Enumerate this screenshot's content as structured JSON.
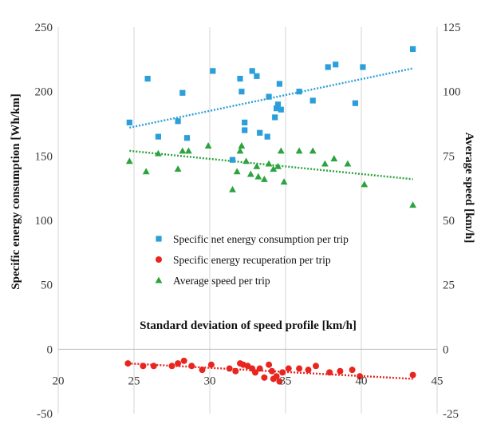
{
  "chart_data": {
    "type": "scatter",
    "title": "",
    "xlabel": "Standard deviation of speed profile [km/h]",
    "ylabel_left": "Specific energy consumption [Wh/km]",
    "ylabel_right": "Average speed [km/h]",
    "xlim": [
      20,
      45
    ],
    "ylim_left": [
      -50,
      250
    ],
    "ylim_right": [
      -25,
      125
    ],
    "x_ticks": [
      "20",
      "25",
      "30",
      "35",
      "40",
      "45"
    ],
    "y_left_ticks": [
      "-50",
      "0",
      "50",
      "100",
      "150",
      "200",
      "250"
    ],
    "y_right_ticks": [
      "-25",
      "0",
      "25",
      "50",
      "75",
      "100",
      "125"
    ],
    "grid": "vertical",
    "legend_position": "center",
    "series": [
      {
        "name": "Specific net energy consumption per trip",
        "axis": "left",
        "marker": "square",
        "color": "#2b9fd9",
        "points": [
          [
            24.7,
            176
          ],
          [
            25.9,
            210
          ],
          [
            26.6,
            165
          ],
          [
            27.9,
            177
          ],
          [
            28.2,
            199
          ],
          [
            28.5,
            164
          ],
          [
            30.2,
            216
          ],
          [
            31.5,
            147
          ],
          [
            32.0,
            210
          ],
          [
            32.1,
            200
          ],
          [
            32.3,
            176
          ],
          [
            32.3,
            170
          ],
          [
            32.8,
            216
          ],
          [
            33.1,
            212
          ],
          [
            33.3,
            168
          ],
          [
            33.8,
            165
          ],
          [
            33.9,
            196
          ],
          [
            34.3,
            180
          ],
          [
            34.4,
            187
          ],
          [
            34.5,
            190
          ],
          [
            34.6,
            206
          ],
          [
            34.7,
            186
          ],
          [
            35.9,
            200
          ],
          [
            36.8,
            193
          ],
          [
            37.8,
            219
          ],
          [
            38.3,
            221
          ],
          [
            39.6,
            191
          ],
          [
            40.1,
            219
          ],
          [
            43.4,
            233
          ]
        ],
        "trend": [
          [
            24.7,
            172
          ],
          [
            43.4,
            218
          ]
        ]
      },
      {
        "name": "Specific energy recuperation per trip",
        "axis": "left",
        "marker": "circle",
        "color": "#e8251f",
        "points": [
          [
            24.6,
            -11
          ],
          [
            25.6,
            -13
          ],
          [
            26.3,
            -13
          ],
          [
            27.5,
            -13
          ],
          [
            27.9,
            -11
          ],
          [
            28.3,
            -9
          ],
          [
            28.8,
            -13
          ],
          [
            29.5,
            -16
          ],
          [
            30.1,
            -12
          ],
          [
            31.3,
            -15
          ],
          [
            31.7,
            -17
          ],
          [
            32.0,
            -11
          ],
          [
            32.2,
            -12
          ],
          [
            32.5,
            -13
          ],
          [
            32.8,
            -15
          ],
          [
            33.0,
            -18
          ],
          [
            33.3,
            -15
          ],
          [
            33.6,
            -22
          ],
          [
            33.9,
            -12
          ],
          [
            34.1,
            -17
          ],
          [
            34.2,
            -23
          ],
          [
            34.4,
            -21
          ],
          [
            34.6,
            -25
          ],
          [
            34.8,
            -18
          ],
          [
            35.2,
            -15
          ],
          [
            35.9,
            -15
          ],
          [
            36.5,
            -16
          ],
          [
            37.0,
            -13
          ],
          [
            37.9,
            -18
          ],
          [
            38.6,
            -17
          ],
          [
            39.4,
            -16
          ],
          [
            39.9,
            -21
          ],
          [
            43.4,
            -20
          ]
        ],
        "trend": [
          [
            24.6,
            -11
          ],
          [
            43.4,
            -23
          ]
        ]
      },
      {
        "name": "Average speed per trip",
        "axis": "right",
        "marker": "triangle",
        "color": "#2ba33f",
        "points": [
          [
            24.7,
            73
          ],
          [
            25.8,
            69
          ],
          [
            26.6,
            76
          ],
          [
            27.9,
            70
          ],
          [
            28.2,
            77
          ],
          [
            28.6,
            77
          ],
          [
            29.9,
            79
          ],
          [
            31.5,
            62
          ],
          [
            31.8,
            69
          ],
          [
            32.0,
            77
          ],
          [
            32.1,
            79
          ],
          [
            32.4,
            73
          ],
          [
            32.7,
            68
          ],
          [
            33.1,
            71
          ],
          [
            33.2,
            67
          ],
          [
            33.6,
            66
          ],
          [
            33.9,
            72
          ],
          [
            34.2,
            70
          ],
          [
            34.5,
            71
          ],
          [
            34.7,
            77
          ],
          [
            34.9,
            65
          ],
          [
            35.9,
            77
          ],
          [
            36.8,
            77
          ],
          [
            37.6,
            72
          ],
          [
            38.2,
            74
          ],
          [
            39.1,
            72
          ],
          [
            40.2,
            64
          ],
          [
            43.4,
            56
          ]
        ],
        "trend": [
          [
            24.7,
            77
          ],
          [
            43.4,
            66
          ]
        ]
      }
    ]
  }
}
